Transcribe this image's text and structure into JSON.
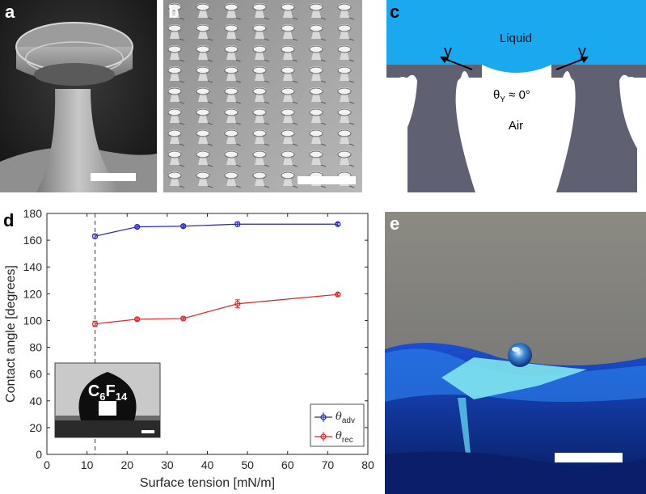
{
  "panels": {
    "a": {
      "label": "a"
    },
    "b": {
      "label": "b"
    },
    "c": {
      "label": "c",
      "liquid_label": "Liquid",
      "air_label": "Air",
      "gamma_left": "γ",
      "gamma_right": "γ",
      "theta_symbol": "θ",
      "theta_subscript": "Y",
      "theta_value": " ≈ 0°",
      "colors": {
        "liquid": "#1aa8ee",
        "solid": "#5f6172"
      }
    },
    "d": {
      "label": "d"
    },
    "e": {
      "label": "e"
    }
  },
  "chart_data": {
    "type": "line",
    "xlabel": "Surface tension [mN/m]",
    "ylabel": "Contact angle [degrees]",
    "xlim": [
      0,
      80
    ],
    "ylim": [
      0,
      180
    ],
    "xticks": [
      0,
      10,
      20,
      30,
      40,
      50,
      60,
      70,
      80
    ],
    "yticks": [
      0,
      20,
      40,
      60,
      80,
      100,
      120,
      140,
      160,
      180
    ],
    "grid": false,
    "legend_position": "bottom-right",
    "vline_x": 12,
    "series": [
      {
        "name_symbol": "θ",
        "name_sub": "adv",
        "color": "#1f1fd6",
        "x": [
          12,
          22.5,
          34,
          47.5,
          72.5
        ],
        "y": [
          163,
          170,
          170.5,
          172,
          172
        ],
        "err": [
          1.5,
          1,
          1,
          1.5,
          1
        ]
      },
      {
        "name_symbol": "θ",
        "name_sub": "rec",
        "color": "#e02020",
        "x": [
          12,
          22.5,
          34,
          47.5,
          72.5
        ],
        "y": [
          97.5,
          101,
          101.5,
          112.5,
          119.5
        ],
        "err": [
          2,
          1,
          1,
          3,
          1
        ]
      }
    ],
    "inset": {
      "formula_main": "C",
      "formula_sub1": "6",
      "formula_main2": "F",
      "formula_sub2": "14"
    }
  }
}
